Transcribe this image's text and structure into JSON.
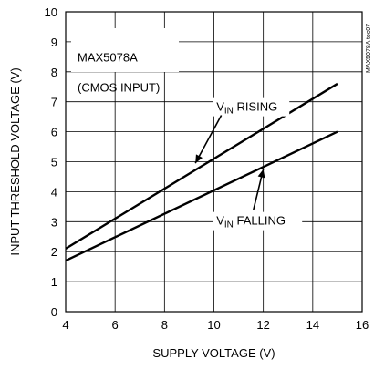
{
  "chart_data": {
    "type": "line",
    "xlabel": "SUPPLY VOLTAGE (V)",
    "ylabel": "INPUT THRESHOLD VOLTAGE (V)",
    "xlim": [
      4,
      16
    ],
    "ylim": [
      0,
      10
    ],
    "x_ticks": [
      4,
      6,
      8,
      10,
      12,
      14,
      16
    ],
    "y_ticks": [
      0,
      1,
      2,
      3,
      4,
      5,
      6,
      7,
      8,
      9,
      10
    ],
    "grid": true,
    "series": [
      {
        "name": "VIN RISING",
        "x": [
          4,
          15
        ],
        "y": [
          2.1,
          7.6
        ]
      },
      {
        "name": "VIN FALLING",
        "x": [
          4,
          15
        ],
        "y": [
          1.7,
          6.0
        ]
      }
    ],
    "annotations": {
      "box_line1": "MAX5078A",
      "box_line2": "(CMOS INPUT)",
      "rising_v": "V",
      "rising_sub": "IN",
      "rising_text": " RISING",
      "falling_v": "V",
      "falling_sub": "IN",
      "falling_text": " FALLING",
      "figure_code": "MAX5078A toc07"
    }
  }
}
